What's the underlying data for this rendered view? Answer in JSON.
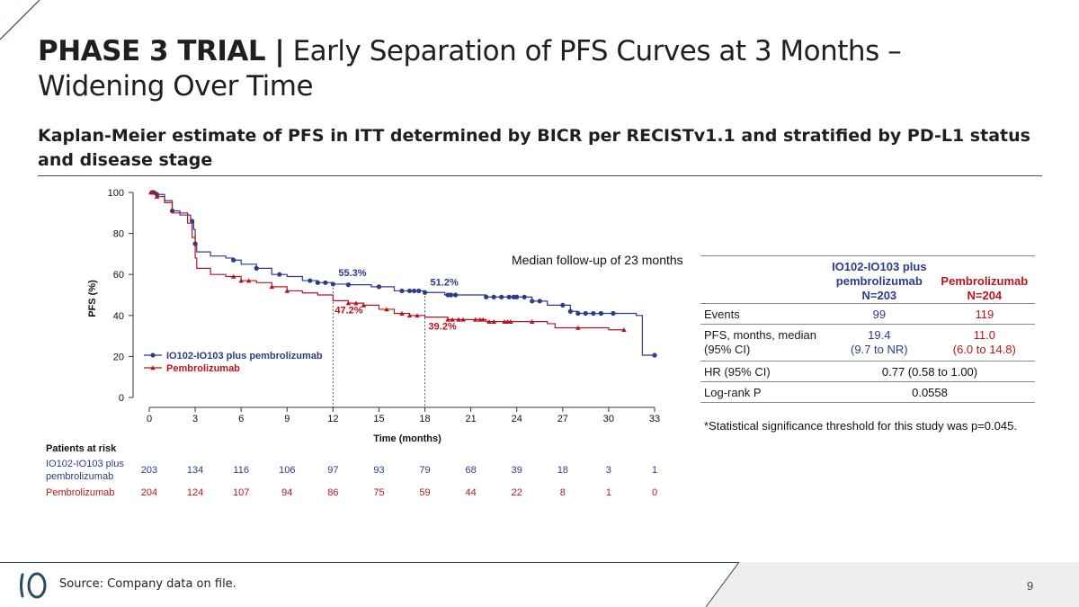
{
  "header": {
    "title_bold": "PHASE 3 TRIAL |",
    "title_rest": " Early Separation of PFS Curves at 3 Months – Widening Over Time",
    "subtitle": "Kaplan-Meier estimate of PFS in ITT determined by BICR per RECISTv1.1 and stratified by PD-L1 status and disease stage"
  },
  "colors": {
    "io": "#2e3a8c",
    "pem": "#b8141e",
    "accent": "#2b4a5e",
    "footer_band": "#eeeeee"
  },
  "chart_data": {
    "type": "line",
    "subtype": "kaplan-meier",
    "xlabel": "Time (months)",
    "ylabel": "PFS (%)",
    "xlim": [
      0,
      33
    ],
    "ylim": [
      0,
      100
    ],
    "xticks": [
      0,
      3,
      6,
      9,
      12,
      15,
      18,
      21,
      24,
      27,
      30,
      33
    ],
    "yticks": [
      0,
      20,
      40,
      60,
      80,
      100
    ],
    "series": [
      {
        "name": "IO102-IO103 plus pembrolizumab",
        "color": "#2e3a8c",
        "marker": "circle",
        "steps": [
          [
            0,
            100
          ],
          [
            0.5,
            99
          ],
          [
            1,
            96
          ],
          [
            1.5,
            91
          ],
          [
            2,
            89
          ],
          [
            2.7,
            86
          ],
          [
            2.9,
            82
          ],
          [
            3,
            75
          ],
          [
            3.1,
            71
          ],
          [
            4,
            69
          ],
          [
            5,
            68
          ],
          [
            5.5,
            67
          ],
          [
            6,
            65
          ],
          [
            7,
            63
          ],
          [
            8,
            60
          ],
          [
            9,
            59
          ],
          [
            10,
            57
          ],
          [
            11,
            56
          ],
          [
            12,
            55.3
          ],
          [
            13,
            55
          ],
          [
            14.5,
            54
          ],
          [
            16,
            52
          ],
          [
            17,
            52
          ],
          [
            18,
            51.2
          ],
          [
            19.3,
            50
          ],
          [
            22,
            49
          ],
          [
            24,
            49
          ],
          [
            25,
            47
          ],
          [
            26,
            45
          ],
          [
            27.5,
            42
          ],
          [
            28,
            41
          ],
          [
            30,
            41
          ],
          [
            31.8,
            40
          ],
          [
            32.2,
            20.6
          ],
          [
            33,
            20.6
          ]
        ],
        "censor_times": [
          0.2,
          0.3,
          0.5,
          1.5,
          2.8,
          3,
          5.5,
          7,
          8.5,
          10.5,
          11,
          11.5,
          12,
          13,
          15,
          16.5,
          17,
          17.3,
          17.6,
          18,
          19.5,
          19.7,
          20,
          22,
          22.5,
          23,
          23.5,
          23.8,
          24,
          24.5,
          25,
          25.5,
          27,
          27.5,
          28,
          28.5,
          29,
          29.5,
          30.3,
          33
        ]
      },
      {
        "name": "Pembrolizumab",
        "color": "#b8141e",
        "marker": "triangle",
        "steps": [
          [
            0,
            100
          ],
          [
            0.5,
            98
          ],
          [
            1,
            95
          ],
          [
            1.5,
            90
          ],
          [
            2.5,
            85
          ],
          [
            2.8,
            78
          ],
          [
            3,
            68
          ],
          [
            3.1,
            63
          ],
          [
            4,
            60
          ],
          [
            5,
            59
          ],
          [
            6,
            57
          ],
          [
            7,
            56
          ],
          [
            8,
            54
          ],
          [
            9,
            52
          ],
          [
            10,
            51
          ],
          [
            11,
            50
          ],
          [
            12,
            47.2
          ],
          [
            13,
            46
          ],
          [
            14,
            45
          ],
          [
            15,
            43
          ],
          [
            16,
            41
          ],
          [
            17,
            40
          ],
          [
            18,
            39.2
          ],
          [
            19.5,
            38
          ],
          [
            21,
            38
          ],
          [
            22,
            37
          ],
          [
            26,
            36
          ],
          [
            26.5,
            34
          ],
          [
            30,
            33
          ],
          [
            31,
            33
          ]
        ],
        "censor_times": [
          0.1,
          0.2,
          0.5,
          5.5,
          6,
          6.5,
          8,
          9,
          13,
          13.5,
          14,
          15.5,
          16.5,
          17,
          17.5,
          19.5,
          19.8,
          20.2,
          20.5,
          21.3,
          21.6,
          21.8,
          22.2,
          22.5,
          23.2,
          23.4,
          23.6,
          25,
          28,
          31
        ]
      }
    ],
    "annotations": [
      {
        "text": "55.3%",
        "x": 12,
        "y": 55.3,
        "series": "IO102-IO103 plus pembrolizumab"
      },
      {
        "text": "51.2%",
        "x": 18,
        "y": 51.2,
        "series": "IO102-IO103 plus pembrolizumab"
      },
      {
        "text": "47.2%",
        "x": 12,
        "y": 47.2,
        "series": "Pembrolizumab"
      },
      {
        "text": "39.2%",
        "x": 18,
        "y": 39.2,
        "series": "Pembrolizumab"
      }
    ],
    "reference_lines_x": [
      12,
      18
    ],
    "median_note": "Median follow-up of 23 months",
    "risk_table": {
      "title": "Patients at risk",
      "rows": [
        {
          "label": [
            "IO102-IO103 plus",
            "pembrolizumab"
          ],
          "values": [
            203,
            134,
            116,
            106,
            97,
            93,
            79,
            68,
            39,
            18,
            3,
            1
          ]
        },
        {
          "label": [
            "Pembrolizumab"
          ],
          "values": [
            204,
            124,
            107,
            94,
            86,
            75,
            59,
            44,
            22,
            8,
            1,
            0
          ]
        }
      ]
    }
  },
  "results_table": {
    "headers": {
      "empty": "",
      "io": [
        "IO102-IO103 plus",
        "pembrolizumab",
        "N=203"
      ],
      "pem": [
        "Pembrolizumab",
        "N=204"
      ]
    },
    "rows": {
      "events": {
        "label": "Events",
        "io": "99",
        "pem": "119"
      },
      "pfs": {
        "label1": "PFS, months, median",
        "label2": "(95% CI)",
        "io1": "19.4",
        "io2": "(9.7 to NR)",
        "pem1": "11.0",
        "pem2": "(6.0 to 14.8)"
      },
      "hr": {
        "label": "HR (95% CI)",
        "value": "0.77 (0.58 to 1.00)"
      },
      "logrank": {
        "label": "Log-rank P",
        "value": "0.0558"
      }
    },
    "footnote": "*Statistical significance threshold for this study was p=0.045."
  },
  "footer": {
    "source": "Source: Company data on file.",
    "page": "9"
  }
}
